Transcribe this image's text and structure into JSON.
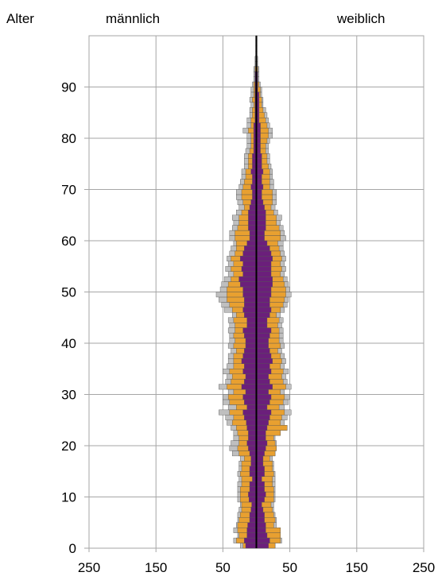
{
  "chart_data": {
    "type": "bar",
    "subtype": "population-pyramid (stacked, mirrored)",
    "labels": {
      "y_axis": "Alter",
      "left": "männlich",
      "right": "weiblich"
    },
    "x_tick_labels": [
      "250",
      "150",
      "50",
      "50",
      "150",
      "250"
    ],
    "x_ticks": [
      -250,
      -150,
      -50,
      50,
      150,
      250
    ],
    "xlim": [
      -250,
      250
    ],
    "y_tick_labels": [
      "0",
      "10",
      "20",
      "30",
      "40",
      "50",
      "60",
      "70",
      "80",
      "90"
    ],
    "y_ticks": [
      0,
      10,
      20,
      30,
      40,
      50,
      60,
      70,
      80,
      90
    ],
    "ylim": [
      0,
      100
    ],
    "grid": true,
    "legend": "none",
    "colors": {
      "inner": "#6B1F7B",
      "middle": "#E8A030",
      "outer": "#BFBFBF",
      "grid": "#A6A6A6",
      "center_line": "#000000"
    },
    "series_note": "Three stacked layers per side (inner purple, middle orange, outer grey); values are approximate bar lengths in axis units per single year of age 0-99.",
    "male": {
      "inner": [
        16,
        18,
        14,
        14,
        13,
        10,
        10,
        8,
        7,
        11,
        12,
        10,
        10,
        6,
        10,
        10,
        8,
        8,
        10,
        12,
        14,
        12,
        12,
        14,
        15,
        18,
        20,
        14,
        18,
        20,
        16,
        22,
        18,
        16,
        20,
        18,
        22,
        20,
        18,
        16,
        16,
        18,
        20,
        14,
        14,
        18,
        20,
        18,
        18,
        20,
        20,
        24,
        26,
        20,
        22,
        20,
        24,
        20,
        18,
        14,
        10,
        10,
        12,
        12,
        12,
        12,
        10,
        8,
        6,
        6,
        8,
        6,
        6,
        8,
        6,
        6,
        6,
        4,
        4,
        4,
        4,
        4,
        4,
        2,
        2,
        2,
        2,
        2,
        2,
        2,
        2,
        2,
        2,
        1,
        1,
        1,
        1,
        1,
        1,
        1
      ],
      "middle": [
        20,
        30,
        26,
        28,
        28,
        26,
        24,
        22,
        22,
        24,
        24,
        24,
        22,
        22,
        24,
        22,
        22,
        18,
        26,
        28,
        26,
        26,
        28,
        30,
        36,
        34,
        40,
        30,
        40,
        42,
        34,
        44,
        38,
        36,
        40,
        34,
        34,
        34,
        30,
        34,
        32,
        34,
        32,
        32,
        34,
        30,
        36,
        40,
        44,
        44,
        44,
        42,
        38,
        34,
        38,
        34,
        38,
        32,
        30,
        30,
        32,
        32,
        28,
        26,
        26,
        22,
        18,
        20,
        22,
        22,
        20,
        18,
        16,
        16,
        12,
        12,
        12,
        10,
        8,
        8,
        8,
        12,
        8,
        8,
        6,
        6,
        4,
        6,
        4,
        4,
        4,
        2,
        2,
        2,
        1,
        1,
        1,
        1,
        1,
        1
      ],
      "outer": [
        24,
        34,
        28,
        34,
        30,
        28,
        28,
        26,
        24,
        28,
        28,
        28,
        28,
        26,
        28,
        26,
        26,
        24,
        36,
        40,
        38,
        34,
        34,
        38,
        44,
        46,
        56,
        42,
        50,
        50,
        42,
        56,
        46,
        44,
        50,
        44,
        42,
        42,
        38,
        42,
        40,
        40,
        42,
        40,
        42,
        36,
        48,
        52,
        56,
        60,
        54,
        52,
        48,
        42,
        46,
        42,
        44,
        40,
        38,
        34,
        40,
        40,
        36,
        34,
        36,
        30,
        26,
        28,
        30,
        30,
        26,
        24,
        22,
        22,
        18,
        18,
        18,
        16,
        14,
        14,
        14,
        20,
        14,
        14,
        10,
        10,
        8,
        10,
        8,
        8,
        6,
        4,
        4,
        4,
        2,
        2,
        1,
        1,
        1,
        1
      ]
    },
    "female": {
      "inner": [
        18,
        20,
        16,
        14,
        14,
        12,
        12,
        10,
        8,
        12,
        14,
        12,
        12,
        8,
        12,
        12,
        10,
        10,
        12,
        14,
        16,
        14,
        14,
        16,
        18,
        20,
        22,
        16,
        20,
        22,
        18,
        24,
        20,
        18,
        22,
        20,
        24,
        22,
        20,
        18,
        18,
        20,
        22,
        16,
        16,
        20,
        22,
        20,
        20,
        22,
        22,
        24,
        24,
        22,
        22,
        22,
        24,
        22,
        20,
        16,
        12,
        12,
        14,
        14,
        14,
        14,
        12,
        10,
        8,
        8,
        10,
        8,
        8,
        10,
        8,
        8,
        8,
        6,
        6,
        6,
        6,
        6,
        6,
        4,
        4,
        4,
        4,
        4,
        4,
        2,
        2,
        2,
        2,
        1,
        1,
        1,
        1,
        1,
        1,
        1
      ],
      "middle": [
        28,
        36,
        36,
        36,
        26,
        28,
        26,
        24,
        22,
        26,
        26,
        26,
        24,
        24,
        26,
        24,
        24,
        20,
        28,
        30,
        28,
        26,
        36,
        46,
        36,
        38,
        42,
        34,
        40,
        42,
        36,
        44,
        40,
        38,
        40,
        36,
        38,
        36,
        32,
        36,
        34,
        34,
        34,
        32,
        34,
        30,
        36,
        40,
        42,
        44,
        44,
        42,
        40,
        36,
        38,
        36,
        38,
        36,
        34,
        32,
        36,
        36,
        34,
        30,
        30,
        26,
        22,
        24,
        24,
        24,
        20,
        20,
        20,
        20,
        18,
        16,
        16,
        14,
        14,
        16,
        18,
        18,
        16,
        14,
        12,
        10,
        8,
        8,
        6,
        6,
        4,
        2,
        2,
        2,
        1,
        1,
        1,
        1,
        1,
        1
      ],
      "outer": [
        28,
        38,
        36,
        36,
        30,
        30,
        28,
        26,
        26,
        28,
        28,
        28,
        28,
        28,
        28,
        26,
        26,
        24,
        28,
        30,
        30,
        28,
        36,
        46,
        42,
        46,
        52,
        42,
        48,
        50,
        42,
        52,
        46,
        44,
        48,
        42,
        44,
        42,
        38,
        42,
        40,
        40,
        40,
        38,
        40,
        36,
        42,
        46,
        48,
        52,
        50,
        48,
        46,
        42,
        44,
        42,
        44,
        42,
        40,
        40,
        44,
        42,
        40,
        36,
        38,
        32,
        28,
        30,
        30,
        30,
        26,
        26,
        24,
        24,
        22,
        20,
        20,
        18,
        18,
        20,
        24,
        24,
        20,
        18,
        16,
        14,
        10,
        10,
        8,
        8,
        6,
        4,
        4,
        4,
        2,
        2,
        1,
        1,
        1,
        1
      ]
    }
  }
}
